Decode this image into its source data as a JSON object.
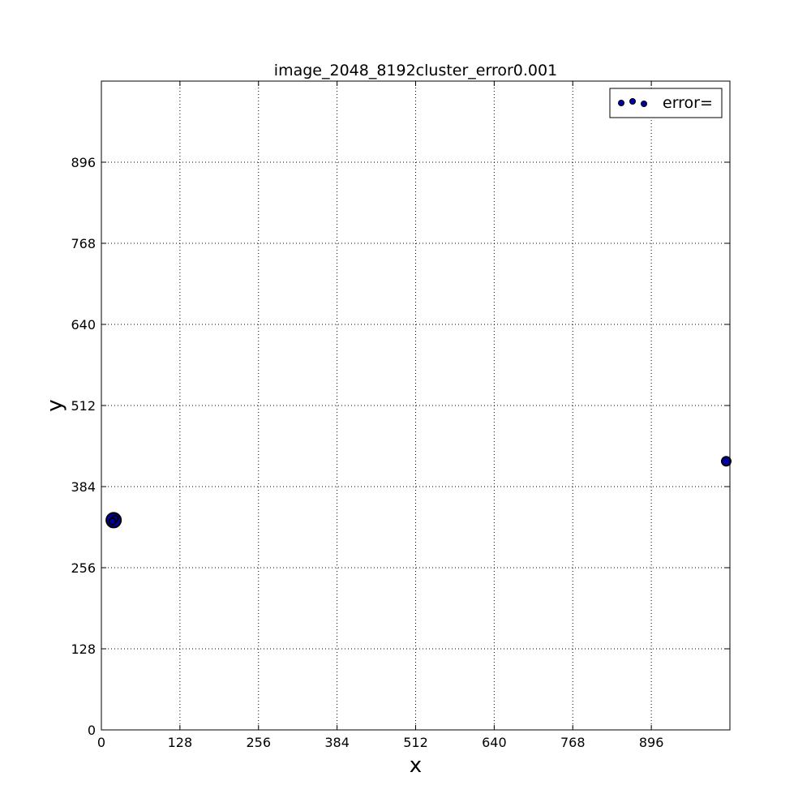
{
  "chart_data": {
    "type": "scatter",
    "title": "image_2048_8192cluster_error0.001",
    "xlabel": "x",
    "ylabel": "y",
    "xlim": [
      0,
      1024
    ],
    "ylim": [
      0,
      1024
    ],
    "xticks": [
      0,
      128,
      256,
      384,
      512,
      640,
      768,
      896
    ],
    "yticks": [
      0,
      128,
      256,
      384,
      512,
      640,
      768,
      896
    ],
    "grid": true,
    "legend": {
      "position": "top-right",
      "entries": [
        "error="
      ]
    },
    "series": [
      {
        "name": "error=",
        "color": "#0000aa",
        "edge_color": "#000000",
        "points": [
          {
            "x": 20,
            "y": 331,
            "size": "large"
          },
          {
            "x": 22,
            "y": 333,
            "size": "small"
          },
          {
            "x": 18,
            "y": 329,
            "size": "small"
          },
          {
            "x": 1018,
            "y": 424,
            "size": "medium"
          }
        ]
      }
    ]
  }
}
